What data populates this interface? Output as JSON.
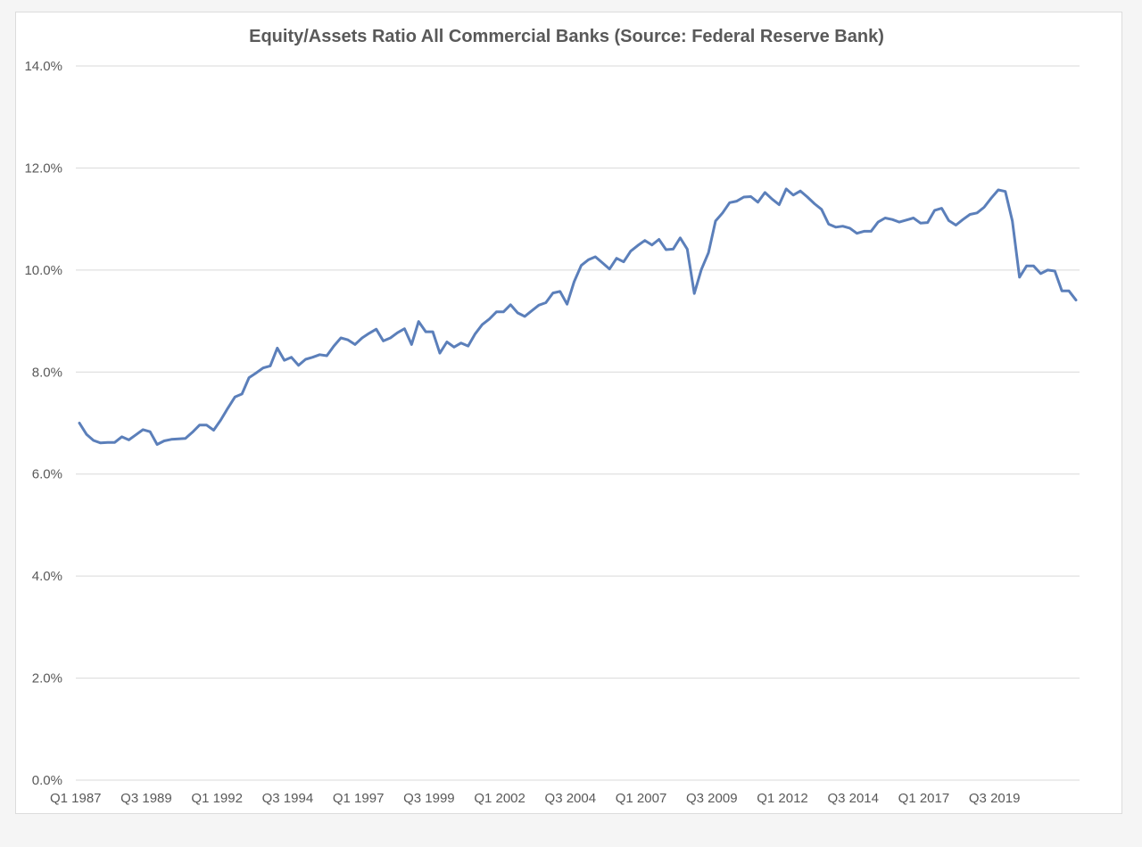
{
  "chart_data": {
    "type": "line",
    "title": "Equity/Assets Ratio All Commercial Banks (Source: Federal Reserve Bank)",
    "xlabel": "",
    "ylabel": "",
    "ylim": [
      0,
      14
    ],
    "grid": true,
    "legend": "none",
    "line_color": "#5b7fba",
    "y_ticks": [
      {
        "value": 0,
        "label": "0.0%"
      },
      {
        "value": 2,
        "label": "2.0%"
      },
      {
        "value": 4,
        "label": "4.0%"
      },
      {
        "value": 6,
        "label": "6.0%"
      },
      {
        "value": 8,
        "label": "8.0%"
      },
      {
        "value": 10,
        "label": "10.0%"
      },
      {
        "value": 12,
        "label": "12.0%"
      },
      {
        "value": 14,
        "label": "14.0%"
      }
    ],
    "x_ticks": [
      "Q1 1987",
      "Q3 1989",
      "Q1 1992",
      "Q3 1994",
      "Q1 1997",
      "Q3 1999",
      "Q1 2002",
      "Q3 2004",
      "Q1 2007",
      "Q3 2009",
      "Q1 2012",
      "Q3 2014",
      "Q1 2017",
      "Q3 2019"
    ],
    "x_start": "Q1 1987",
    "values": [
      7.0,
      6.78,
      6.66,
      6.61,
      6.62,
      6.62,
      6.73,
      6.67,
      6.77,
      6.87,
      6.83,
      6.58,
      6.65,
      6.68,
      6.69,
      6.7,
      6.82,
      6.96,
      6.96,
      6.86,
      7.06,
      7.29,
      7.51,
      7.57,
      7.89,
      7.98,
      8.08,
      8.12,
      8.47,
      8.23,
      8.29,
      8.13,
      8.25,
      8.29,
      8.34,
      8.32,
      8.51,
      8.67,
      8.63,
      8.54,
      8.67,
      8.76,
      8.84,
      8.61,
      8.67,
      8.77,
      8.85,
      8.54,
      8.99,
      8.79,
      8.79,
      8.37,
      8.59,
      8.49,
      8.57,
      8.51,
      8.75,
      8.93,
      9.04,
      9.18,
      9.18,
      9.32,
      9.16,
      9.09,
      9.2,
      9.31,
      9.36,
      9.55,
      9.58,
      9.33,
      9.77,
      10.09,
      10.2,
      10.26,
      10.14,
      10.02,
      10.23,
      10.16,
      10.37,
      10.48,
      10.58,
      10.49,
      10.6,
      10.4,
      10.41,
      10.63,
      10.41,
      9.54,
      10.01,
      10.34,
      10.96,
      11.12,
      11.32,
      11.35,
      11.43,
      11.44,
      11.33,
      11.52,
      11.39,
      11.28,
      11.59,
      11.47,
      11.55,
      11.43,
      11.3,
      11.19,
      10.9,
      10.84,
      10.86,
      10.82,
      10.72,
      10.76,
      10.76,
      10.94,
      11.02,
      10.99,
      10.94,
      10.98,
      11.02,
      10.92,
      10.93,
      11.17,
      11.21,
      10.97,
      10.88,
      10.99,
      11.09,
      11.12,
      11.23,
      11.41,
      11.57,
      11.54,
      10.96,
      9.86,
      10.08,
      10.08,
      9.93,
      10.0,
      9.98,
      9.59,
      9.59,
      9.41
    ]
  }
}
